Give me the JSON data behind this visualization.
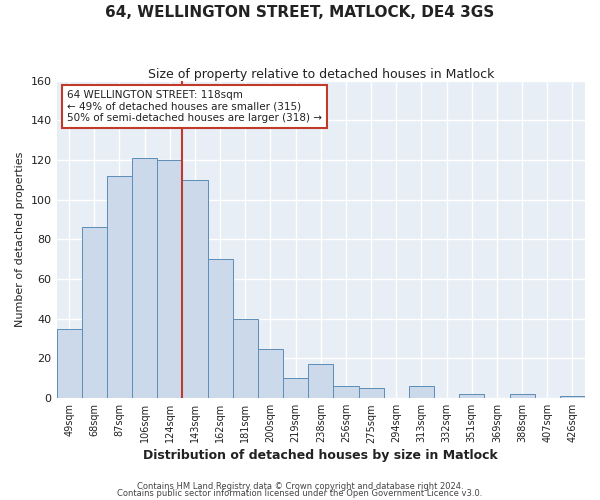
{
  "title": "64, WELLINGTON STREET, MATLOCK, DE4 3GS",
  "subtitle": "Size of property relative to detached houses in Matlock",
  "xlabel": "Distribution of detached houses by size in Matlock",
  "ylabel": "Number of detached properties",
  "bar_labels": [
    "49sqm",
    "68sqm",
    "87sqm",
    "106sqm",
    "124sqm",
    "143sqm",
    "162sqm",
    "181sqm",
    "200sqm",
    "219sqm",
    "238sqm",
    "256sqm",
    "275sqm",
    "294sqm",
    "313sqm",
    "332sqm",
    "351sqm",
    "369sqm",
    "388sqm",
    "407sqm",
    "426sqm"
  ],
  "bar_values": [
    35,
    86,
    112,
    121,
    120,
    110,
    70,
    40,
    25,
    10,
    17,
    6,
    5,
    0,
    6,
    0,
    2,
    0,
    2,
    0,
    1
  ],
  "bar_color": "#ccd9ea",
  "bar_edge_color": "#5b8db8",
  "ylim": [
    0,
    160
  ],
  "yticks": [
    0,
    20,
    40,
    60,
    80,
    100,
    120,
    140,
    160
  ],
  "vline_x_index": 4,
  "vline_color": "#c0392b",
  "annotation_title": "64 WELLINGTON STREET: 118sqm",
  "annotation_line1": "← 49% of detached houses are smaller (315)",
  "annotation_line2": "50% of semi-detached houses are larger (318) →",
  "annotation_box_color": "#ffffff",
  "annotation_box_edge": "#c0392b",
  "footer1": "Contains HM Land Registry data © Crown copyright and database right 2024.",
  "footer2": "Contains public sector information licensed under the Open Government Licence v3.0.",
  "fig_background": "#ffffff",
  "plot_background": "#e8eef5",
  "grid_color": "#ffffff"
}
